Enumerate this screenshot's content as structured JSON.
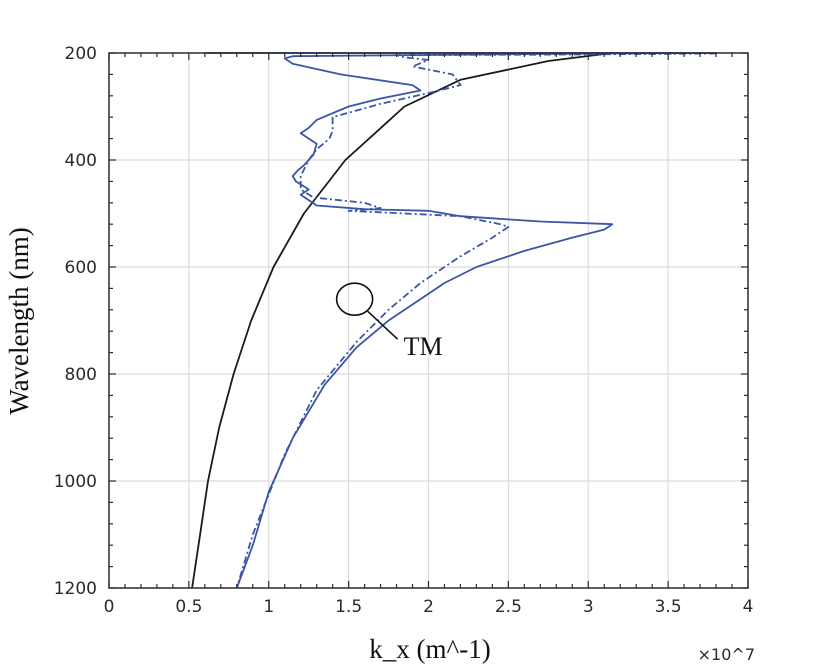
{
  "chart_data": {
    "type": "line",
    "title": "",
    "xlabel": "k_x (m^-1)",
    "ylabel": "Wavelength (nm)",
    "x_multiplier": "×10^7",
    "xlim": [
      0,
      4
    ],
    "ylim": [
      200,
      1200
    ],
    "y_reversed": true,
    "x_ticks": [
      "0",
      "0.5",
      "1",
      "1.5",
      "2",
      "2.5",
      "3",
      "3.5",
      "4"
    ],
    "y_ticks": [
      "200",
      "400",
      "600",
      "800",
      "1000",
      "1200"
    ],
    "grid": true,
    "colors": {
      "blue": "#3a56a5",
      "black": "#1a1a1a",
      "grid": "#dcdcdc"
    },
    "annotation": {
      "text": "TM",
      "x": 1.5,
      "y": 705
    },
    "series": [
      {
        "style": "solid",
        "color": "#1a1a1a",
        "points": [
          [
            0.52,
            1200
          ],
          [
            0.57,
            1100
          ],
          [
            0.62,
            1000
          ],
          [
            0.69,
            900
          ],
          [
            0.78,
            800
          ],
          [
            0.89,
            700
          ],
          [
            1.03,
            600
          ],
          [
            1.22,
            500
          ],
          [
            1.48,
            400
          ],
          [
            1.85,
            300
          ],
          [
            2.2,
            250
          ],
          [
            2.75,
            215
          ],
          [
            3.15,
            200
          ]
        ]
      },
      {
        "style": "solid",
        "color": "#3a56a5",
        "points": [
          [
            0.6,
            200
          ],
          [
            3.8,
            200
          ],
          [
            3.1,
            201
          ],
          [
            2.6,
            202
          ],
          [
            1.9,
            204
          ],
          [
            1.15,
            206
          ],
          [
            1.1,
            210
          ],
          [
            1.15,
            220
          ],
          [
            1.45,
            240
          ],
          [
            1.9,
            260
          ],
          [
            1.95,
            270
          ],
          [
            1.7,
            285
          ],
          [
            1.5,
            300
          ],
          [
            1.3,
            325
          ],
          [
            1.25,
            340
          ],
          [
            1.2,
            350
          ],
          [
            1.3,
            370
          ],
          [
            1.28,
            390
          ],
          [
            1.25,
            400
          ],
          [
            1.22,
            410
          ],
          [
            1.18,
            420
          ],
          [
            1.15,
            430
          ],
          [
            1.17,
            440
          ],
          [
            1.25,
            455
          ],
          [
            1.2,
            465
          ],
          [
            1.3,
            485
          ],
          [
            1.6,
            492
          ],
          [
            2.0,
            495
          ],
          [
            2.2,
            505
          ],
          [
            2.7,
            515
          ],
          [
            3.15,
            520
          ],
          [
            3.1,
            530
          ],
          [
            2.9,
            545
          ],
          [
            2.6,
            570
          ],
          [
            2.3,
            600
          ],
          [
            2.1,
            630
          ],
          [
            1.95,
            660
          ],
          [
            1.75,
            700
          ],
          [
            1.55,
            750
          ],
          [
            1.35,
            820
          ],
          [
            1.15,
            920
          ],
          [
            1.0,
            1020
          ],
          [
            0.9,
            1120
          ],
          [
            0.8,
            1200
          ]
        ]
      },
      {
        "style": "dashdot",
        "color": "#3a56a5",
        "points": [
          [
            3.8,
            201
          ],
          [
            2.8,
            203
          ],
          [
            1.8,
            204
          ],
          [
            1.85,
            208
          ],
          [
            2.0,
            213
          ],
          [
            1.9,
            225
          ],
          [
            2.15,
            240
          ],
          [
            2.2,
            260
          ],
          [
            2.0,
            275
          ],
          [
            1.7,
            295
          ],
          [
            1.4,
            320
          ],
          [
            1.4,
            345
          ],
          [
            1.38,
            360
          ],
          [
            1.3,
            380
          ],
          [
            1.25,
            400
          ],
          [
            1.2,
            430
          ],
          [
            1.2,
            455
          ],
          [
            1.28,
            470
          ],
          [
            1.6,
            480
          ],
          [
            1.7,
            490
          ],
          [
            1.5,
            495
          ],
          [
            2.2,
            505
          ],
          [
            2.45,
            520
          ],
          [
            2.5,
            525
          ],
          [
            2.4,
            545
          ],
          [
            2.2,
            580
          ],
          [
            1.95,
            630
          ],
          [
            1.75,
            680
          ],
          [
            1.55,
            740
          ],
          [
            1.3,
            830
          ],
          [
            1.1,
            950
          ],
          [
            0.9,
            1100
          ],
          [
            0.8,
            1200
          ]
        ]
      }
    ]
  }
}
